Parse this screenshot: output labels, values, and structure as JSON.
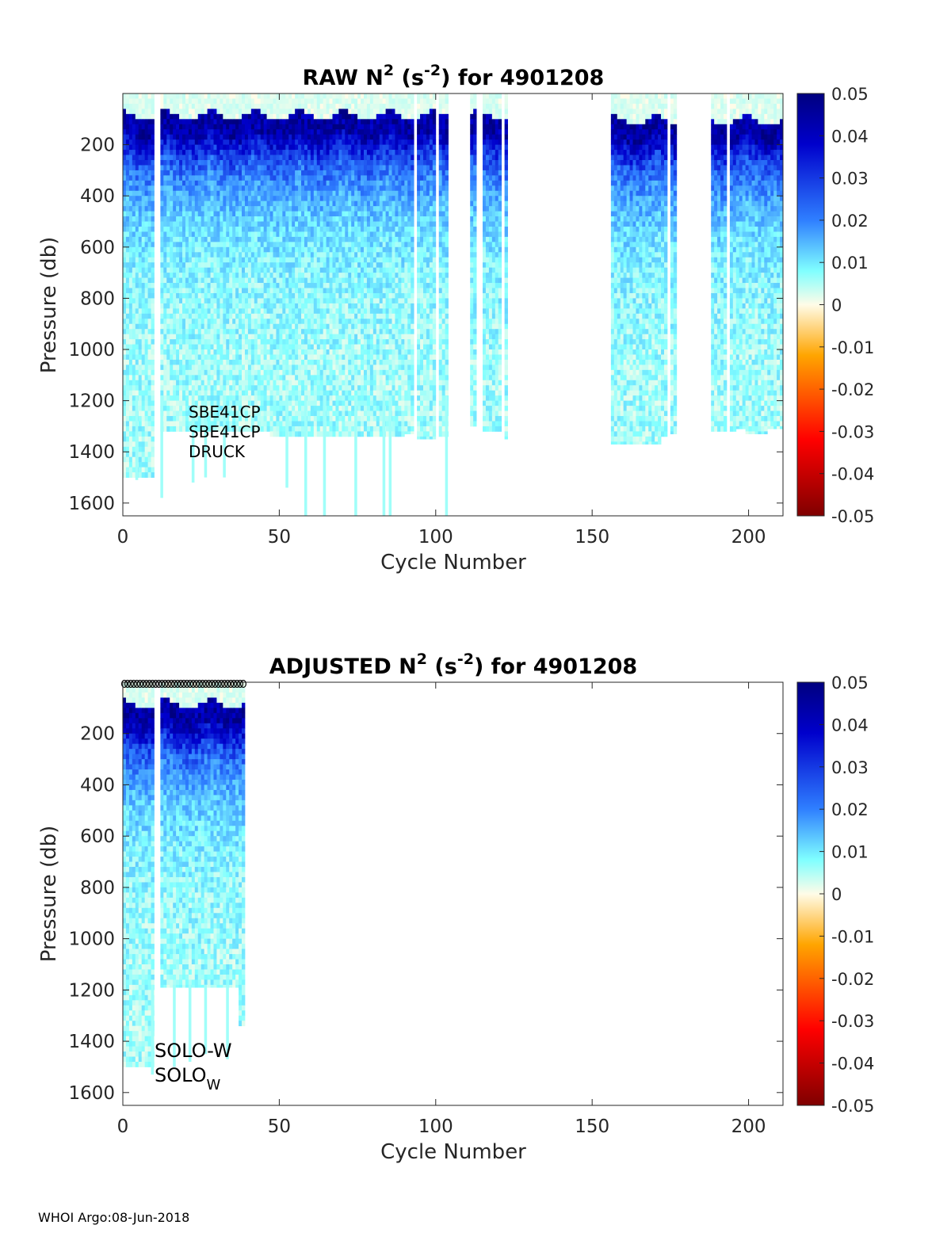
{
  "colors": {
    "neg_extreme": "#7f0000",
    "neg_mid": "#ff0000",
    "neg_low": "#ffa500",
    "zero": "#fffce8",
    "pos_low": "#80ffff",
    "pos_mid": "#2f7fff",
    "pos_high": "#0000cc",
    "pos_extreme": "#00007f"
  },
  "footer": "WHOI Argo:08-Jun-2018",
  "chart_data": [
    {
      "type": "heatmap",
      "title_prefix": "RAW N",
      "title_sup1": "2",
      "title_mid": " (s",
      "title_sup2": "-2",
      "title_suffix": ") for 4901208",
      "xlabel": "Cycle Number",
      "ylabel": "Pressure (db)",
      "xlim": [
        0,
        211
      ],
      "ylim": [
        1650,
        0
      ],
      "xticks": [
        0,
        50,
        100,
        150,
        200
      ],
      "yticks": [
        200,
        400,
        600,
        800,
        1000,
        1200,
        1400,
        1600
      ],
      "clim": [
        -0.05,
        0.05
      ],
      "cticks": [
        0.05,
        0.04,
        0.03,
        0.02,
        0.01,
        0,
        -0.01,
        -0.02,
        -0.03,
        -0.04,
        -0.05
      ],
      "annotations": [
        "SBE41CP",
        "SBE41CP",
        "DRUCK"
      ],
      "profile_groups": [
        {
          "cycles": [
            1,
            10
          ],
          "max_pressure": 1500
        },
        {
          "cycles": [
            13,
            47
          ],
          "max_pressure": 1320
        },
        {
          "cycles": [
            48,
            90
          ],
          "max_pressure": 1340
        },
        {
          "cycles": [
            91,
            93
          ],
          "max_pressure": 1330
        },
        {
          "cycles": [
            95,
            100
          ],
          "max_pressure": 1350
        },
        {
          "cycles": [
            102,
            104
          ],
          "max_pressure": 1340
        },
        {
          "cycles": [
            112,
            113
          ],
          "max_pressure": 1300
        },
        {
          "cycles": [
            116,
            121
          ],
          "max_pressure": 1320
        },
        {
          "cycles": [
            123,
            123
          ],
          "max_pressure": 1350
        },
        {
          "cycles": [
            157,
            172
          ],
          "max_pressure": 1370
        },
        {
          "cycles": [
            173,
            174
          ],
          "max_pressure": 1340
        },
        {
          "cycles": [
            176,
            177
          ],
          "max_pressure": 1330
        },
        {
          "cycles": [
            189,
            193
          ],
          "max_pressure": 1320
        },
        {
          "cycles": [
            195,
            196
          ],
          "max_pressure": 1320
        },
        {
          "cycles": [
            197,
            199
          ],
          "max_pressure": 1310
        },
        {
          "cycles": [
            200,
            206
          ],
          "max_pressure": 1330
        },
        {
          "cycles": [
            207,
            211
          ],
          "max_pressure": 1310
        }
      ],
      "deep_profiles": [
        {
          "cycle": 5,
          "max_pressure": 1510
        },
        {
          "cycle": 13,
          "max_pressure": 1580
        },
        {
          "cycle": 23,
          "max_pressure": 1520
        },
        {
          "cycle": 27,
          "max_pressure": 1500
        },
        {
          "cycle": 33,
          "max_pressure": 1500
        },
        {
          "cycle": 53,
          "max_pressure": 1540
        },
        {
          "cycle": 59,
          "max_pressure": 1650
        },
        {
          "cycle": 65,
          "max_pressure": 1650
        },
        {
          "cycle": 75,
          "max_pressure": 1650
        },
        {
          "cycle": 84,
          "max_pressure": 1650
        },
        {
          "cycle": 86,
          "max_pressure": 1650
        },
        {
          "cycle": 104,
          "max_pressure": 1650
        }
      ]
    },
    {
      "type": "heatmap",
      "title_prefix": "ADJUSTED N",
      "title_sup1": "2",
      "title_mid": " (s",
      "title_sup2": "-2",
      "title_suffix": ") for 4901208",
      "xlabel": "Cycle Number",
      "ylabel": "Pressure (db)",
      "xlim": [
        0,
        211
      ],
      "ylim": [
        1650,
        0
      ],
      "xticks": [
        0,
        50,
        100,
        150,
        200
      ],
      "yticks": [
        200,
        400,
        600,
        800,
        1000,
        1200,
        1400,
        1600
      ],
      "clim": [
        -0.05,
        0.05
      ],
      "cticks": [
        0.05,
        0.04,
        0.03,
        0.02,
        0.01,
        0,
        -0.01,
        -0.02,
        -0.03,
        -0.04,
        -0.05
      ],
      "annotation_line1": "SOLO-W",
      "annotation_line2_base": "SOLO",
      "annotation_line2_sub": "W",
      "marker_cycles": [
        1,
        39
      ],
      "profile_groups": [
        {
          "cycles": [
            1,
            10
          ],
          "max_pressure": 1500
        },
        {
          "cycles": [
            13,
            37
          ],
          "max_pressure": 1190
        },
        {
          "cycles": [
            38,
            39
          ],
          "max_pressure": 1340
        }
      ],
      "deep_profiles": [
        {
          "cycle": 10,
          "max_pressure": 1530
        },
        {
          "cycle": 17,
          "max_pressure": 1500
        },
        {
          "cycle": 22,
          "max_pressure": 1480
        },
        {
          "cycle": 27,
          "max_pressure": 1450
        },
        {
          "cycle": 34,
          "max_pressure": 1470
        }
      ]
    }
  ]
}
